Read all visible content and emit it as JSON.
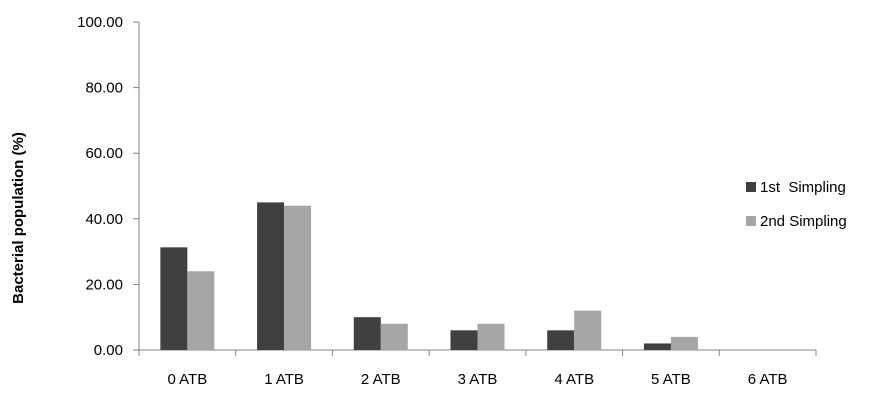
{
  "chart_data": {
    "type": "bar",
    "title": "",
    "xlabel": "",
    "ylabel": "Bacterial population (%)",
    "categories": [
      "0 ATB",
      "1 ATB",
      "2 ATB",
      "3 ATB",
      "4 ATB",
      "5 ATB",
      "6 ATB"
    ],
    "series": [
      {
        "name": "1st  Simpling",
        "color": "#404040",
        "values": [
          31.3,
          45.0,
          10.0,
          6.0,
          6.0,
          2.0,
          0.0
        ]
      },
      {
        "name": "2nd Simpling",
        "color": "#a6a6a6",
        "values": [
          24.0,
          44.0,
          8.0,
          8.0,
          12.0,
          4.0,
          0.0
        ]
      }
    ],
    "ylim": [
      0,
      100
    ],
    "yticks": [
      "0.00",
      "20.00",
      "40.00",
      "60.00",
      "80.00",
      "100.00"
    ],
    "grid": false,
    "legend_position": "right"
  }
}
